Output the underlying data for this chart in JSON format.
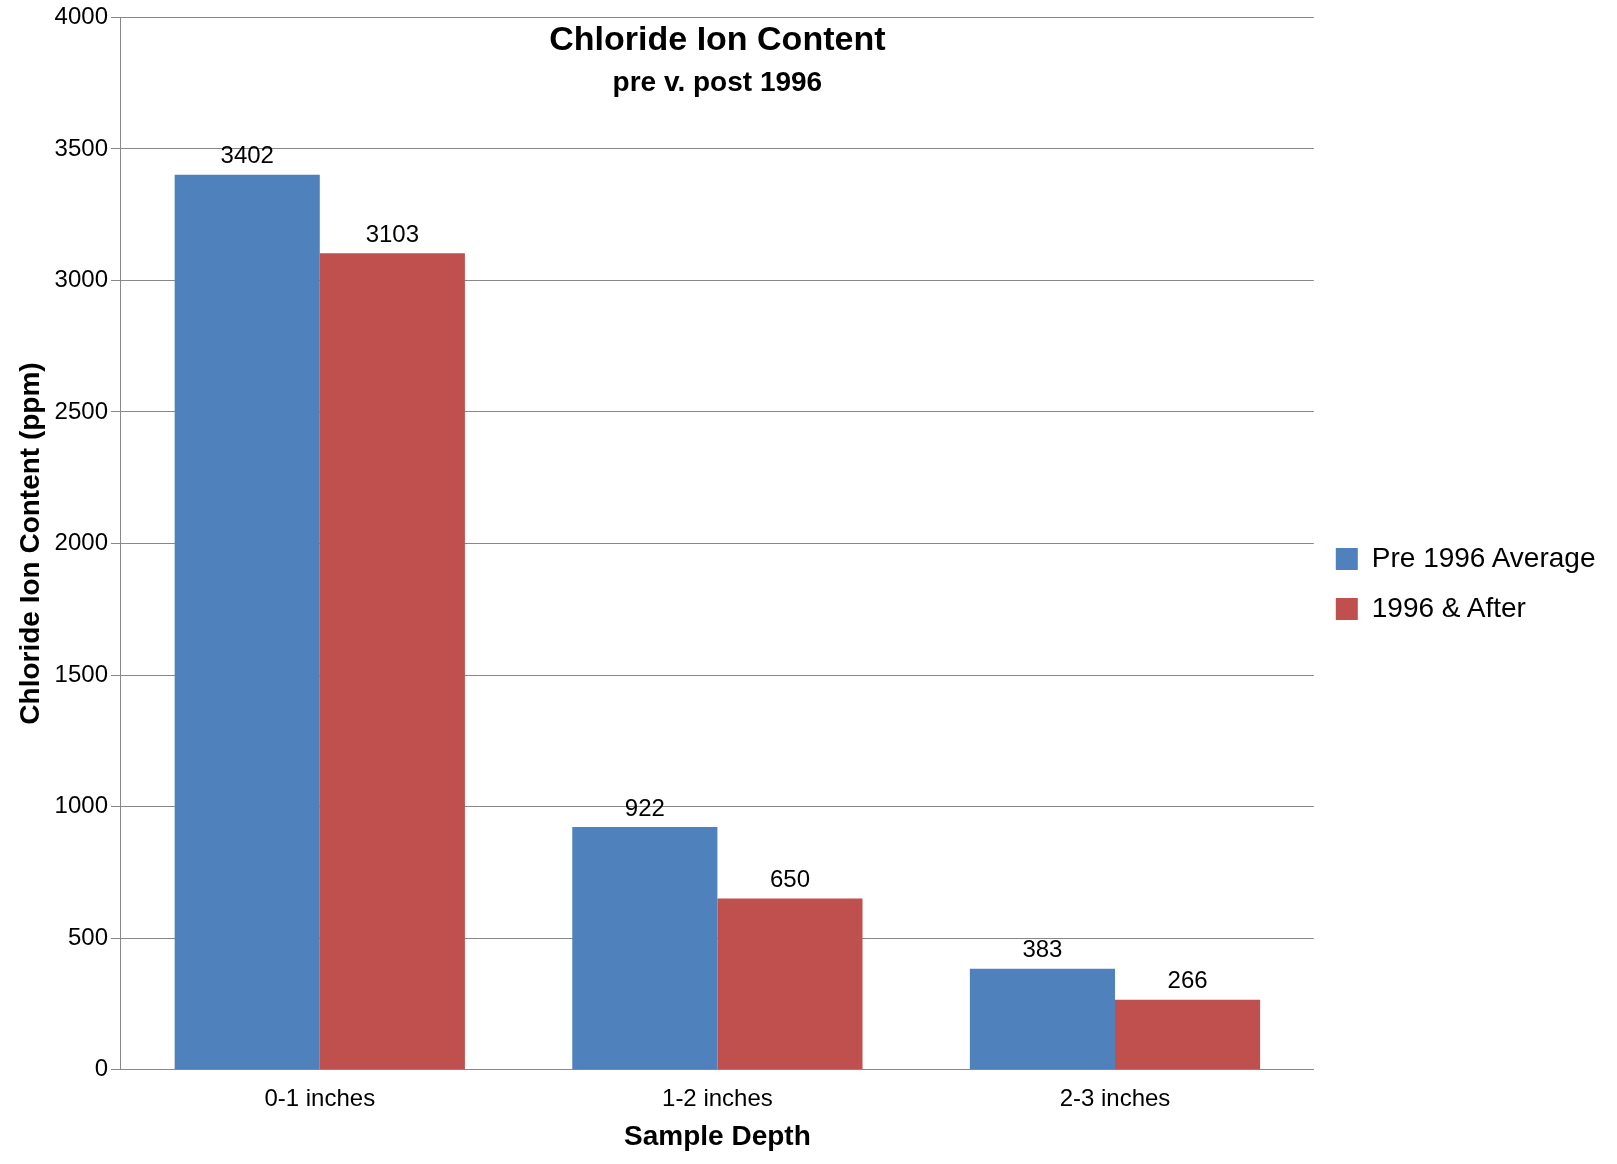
{
  "chart_data": {
    "type": "bar",
    "title": "Chloride Ion Content",
    "subtitle": "pre v. post 1996",
    "xlabel": "Sample Depth",
    "ylabel": "Chloride Ion Content (ppm)",
    "categories": [
      "0-1 inches",
      "1-2 inches",
      "2-3 inches"
    ],
    "series": [
      {
        "name": "Pre 1996 Average",
        "color": "#4f81bd",
        "values": [
          3402,
          922,
          383
        ]
      },
      {
        "name": "1996 & After",
        "color": "#c0504d",
        "values": [
          3103,
          650,
          266
        ]
      }
    ],
    "ylim": [
      0,
      4000
    ],
    "yticks": [
      0,
      500,
      1000,
      1500,
      2000,
      2500,
      3000,
      3500,
      4000
    ],
    "grid": "y",
    "legend": "right",
    "data_labels": true
  }
}
